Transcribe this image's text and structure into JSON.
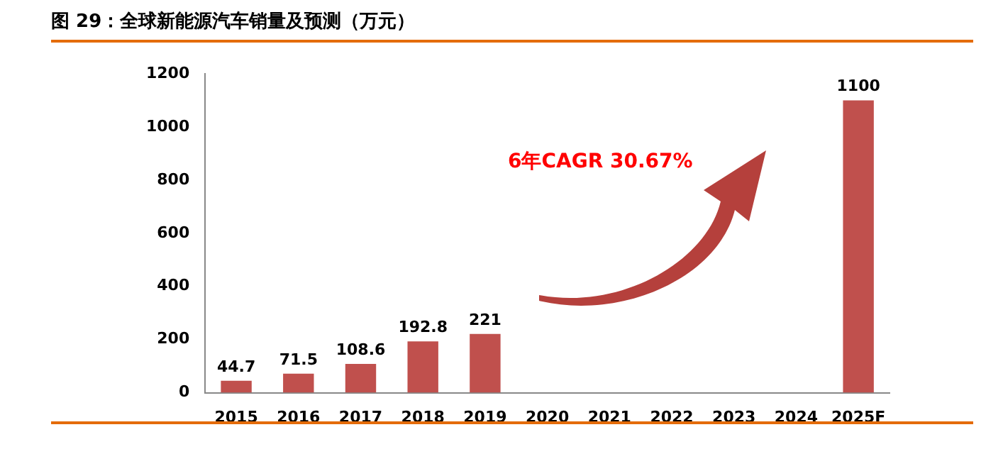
{
  "chart_data": {
    "type": "bar",
    "title": "图 29：全球新能源汽车销量及预测（万元）",
    "categories": [
      "2015",
      "2016",
      "2017",
      "2018",
      "2019",
      "2020",
      "2021",
      "2022",
      "2023",
      "2024",
      "2025F"
    ],
    "values": [
      44.7,
      71.5,
      108.6,
      192.8,
      221,
      null,
      null,
      null,
      null,
      null,
      1100
    ],
    "color": "#c0504d",
    "ylim": [
      0,
      1200
    ],
    "yticks": [
      0,
      200,
      400,
      600,
      800,
      1000,
      1200
    ],
    "grid": false,
    "legend": false,
    "data_labels": true,
    "annotations": [
      "6年CAGR 30.67%"
    ]
  }
}
